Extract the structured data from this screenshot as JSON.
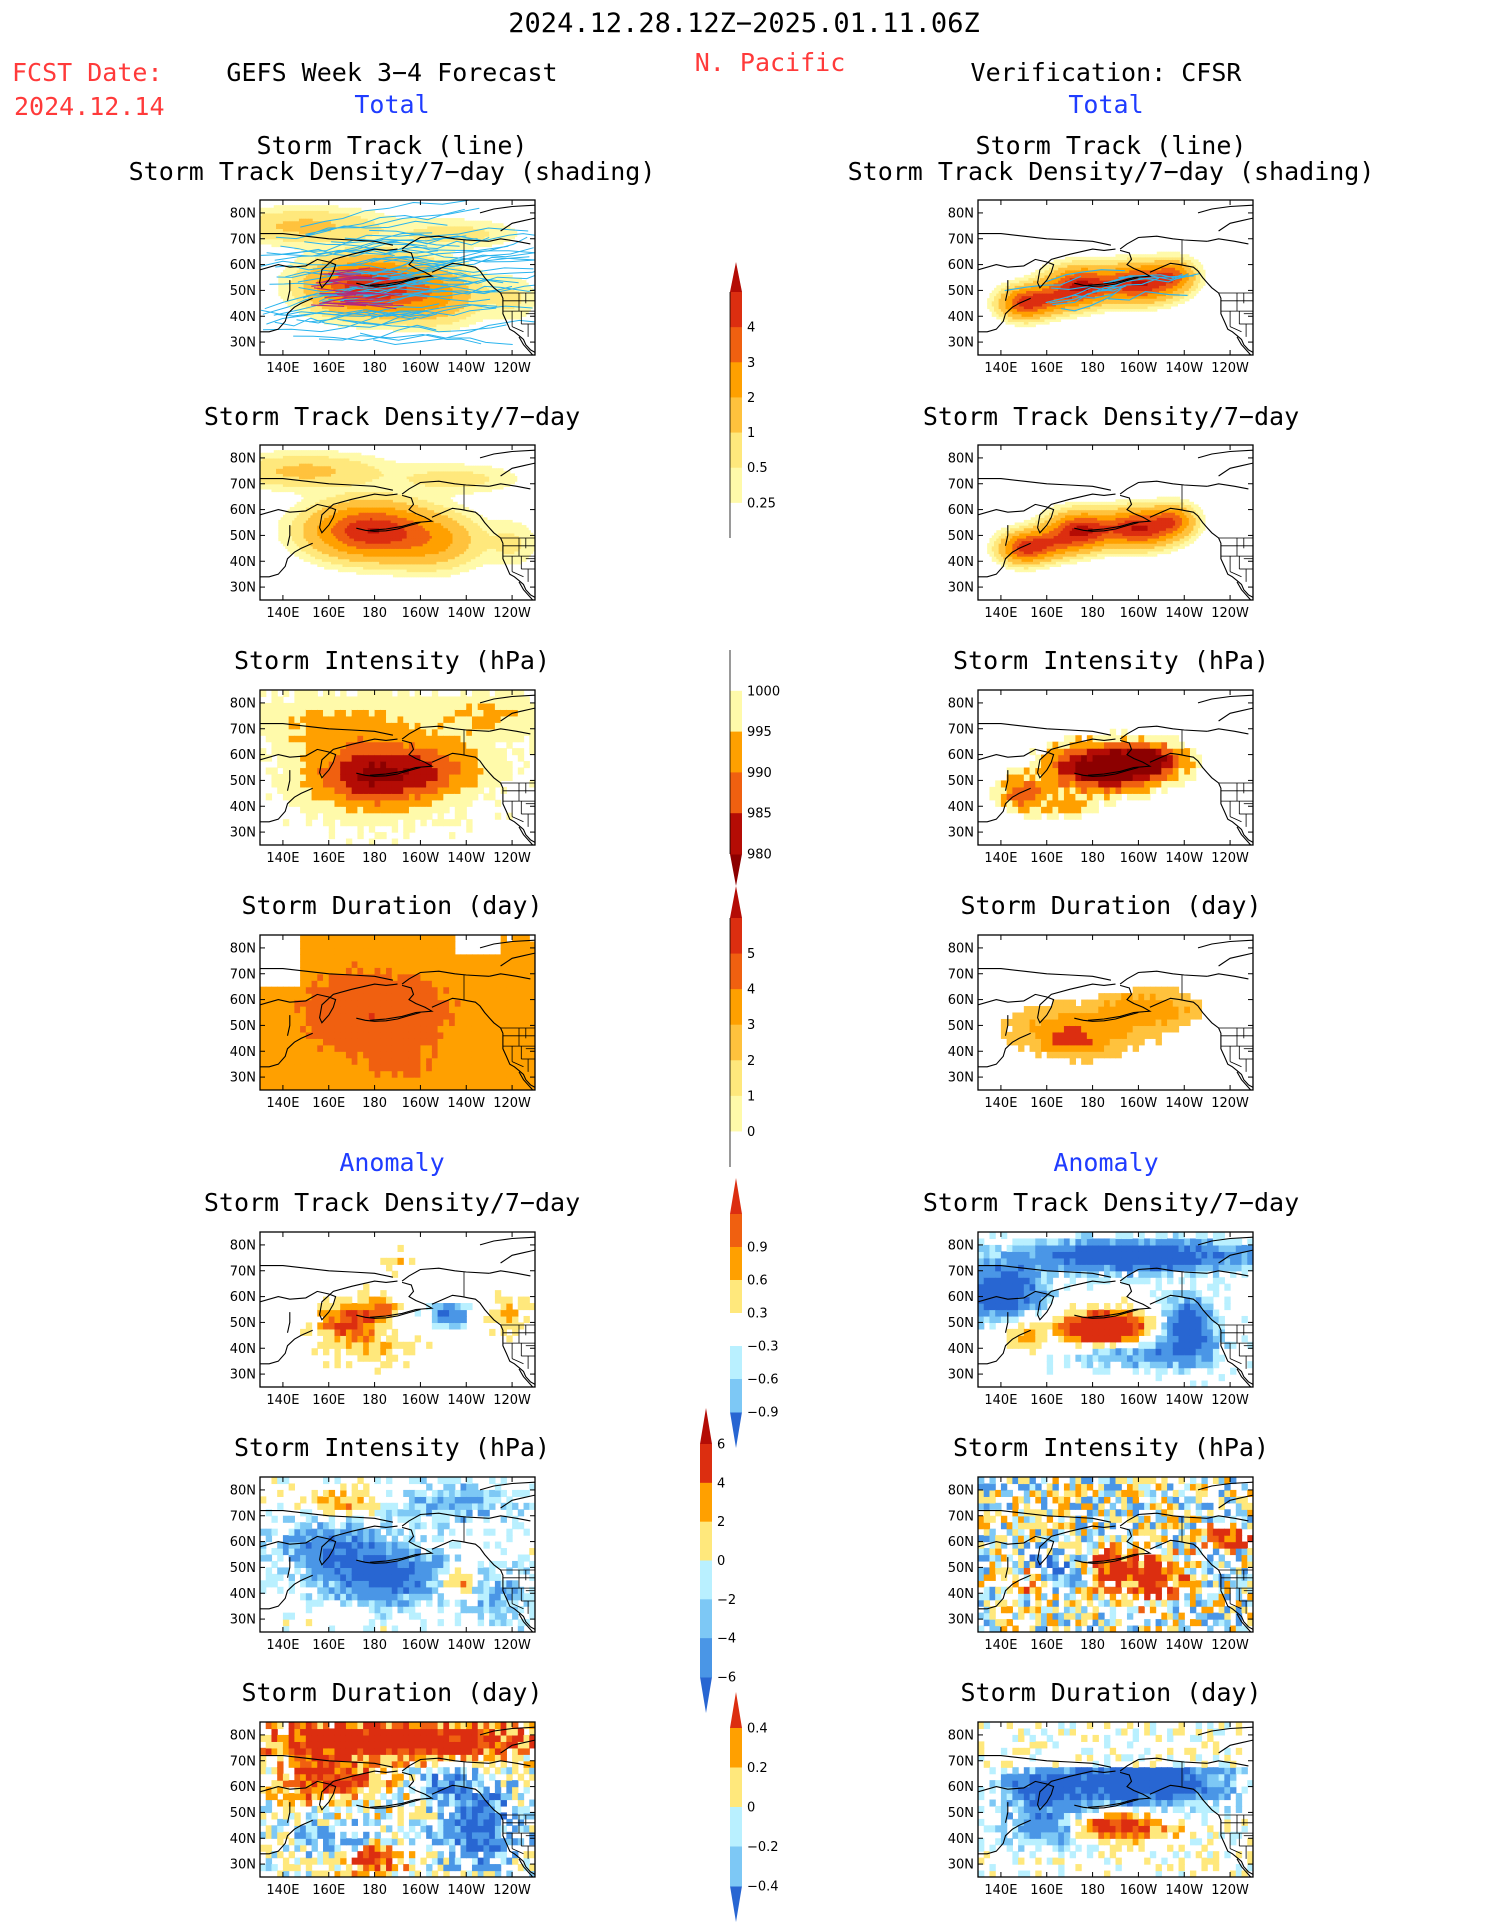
{
  "header": {
    "title": "2024.12.28.12Z−2025.01.11.06Z",
    "region": "N. Pacific",
    "fcst_label": "FCST Date:",
    "fcst_date": "2024.12.14",
    "left_heading": "GEFS Week 3−4 Forecast",
    "right_heading": "Verification: CFSR",
    "total_label": "Total",
    "anomaly_label": "Anomaly"
  },
  "axes": {
    "lat_ticks": [
      "80N",
      "70N",
      "60N",
      "50N",
      "40N",
      "30N"
    ],
    "lon_ticks": [
      "140E",
      "160E",
      "180",
      "160W",
      "140W",
      "120W"
    ]
  },
  "panel_titles": {
    "track_line": "Storm Track (line)",
    "track_density_shading": "Storm Track Density/7−day (shading)",
    "track_density": "Storm Track Density/7−day",
    "intensity": "Storm Intensity (hPa)",
    "duration": "Storm Duration (day)"
  },
  "colors": {
    "c0": "#fffaaa",
    "c1": "#ffe87c",
    "c2": "#ffc23d",
    "c3": "#ffa000",
    "c4": "#f06010",
    "c5": "#dc2e10",
    "c6": "#b40c05",
    "c7": "#8c0000",
    "b1": "#b9f0ff",
    "b2": "#7dc8f5",
    "b3": "#4a96e6",
    "b4": "#2866d2",
    "track_line": "#2ab4ee",
    "track_lobe": "#b4287a"
  },
  "colorbars": {
    "density": [
      "0.25",
      "0.5",
      "1",
      "2",
      "3",
      "4"
    ],
    "intensity": [
      "1000",
      "995",
      "990",
      "985",
      "980"
    ],
    "duration": [
      "0",
      "1",
      "2",
      "3",
      "4",
      "5"
    ],
    "density_anom": [
      "−0.9",
      "−0.6",
      "−0.3",
      "0.3",
      "0.6",
      "0.9"
    ],
    "intensity_anom": [
      "−6",
      "−4",
      "−2",
      "0",
      "2",
      "4",
      "6"
    ],
    "duration_anom": [
      "−0.4",
      "−0.2",
      "0",
      "0.2",
      "0.4"
    ]
  },
  "chart_data": [
    {
      "type": "heatmap",
      "panel": "forecast-total-track",
      "title": "Storm Track (line) / Storm Track Density/7-day (shading)",
      "units": "tracks per 7 day",
      "peak_value": 4,
      "peak_lat": 50,
      "peak_lon": "175E"
    },
    {
      "type": "heatmap",
      "panel": "verification-total-track",
      "title": "Storm Track (line) / Storm Track Density/7-day (shading)",
      "units": "tracks per 7 day",
      "peak_value": 4,
      "peak_lat": 52,
      "peak_lon": "170W"
    },
    {
      "type": "heatmap",
      "panel": "forecast-total-density",
      "title": "Storm Track Density/7-day",
      "levels": [
        0.25,
        0.5,
        1,
        2,
        3,
        4
      ]
    },
    {
      "type": "heatmap",
      "panel": "verification-total-density",
      "title": "Storm Track Density/7-day",
      "levels": [
        0.25,
        0.5,
        1,
        2,
        3,
        4
      ]
    },
    {
      "type": "heatmap",
      "panel": "forecast-total-intensity",
      "title": "Storm Intensity (hPa)",
      "levels": [
        1000,
        995,
        990,
        985,
        980
      ]
    },
    {
      "type": "heatmap",
      "panel": "verification-total-intensity",
      "title": "Storm Intensity (hPa)",
      "levels": [
        1000,
        995,
        990,
        985,
        980
      ]
    },
    {
      "type": "heatmap",
      "panel": "forecast-total-duration",
      "title": "Storm Duration (day)",
      "levels": [
        0,
        1,
        2,
        3,
        4,
        5
      ]
    },
    {
      "type": "heatmap",
      "panel": "verification-total-duration",
      "title": "Storm Duration (day)",
      "levels": [
        0,
        1,
        2,
        3,
        4,
        5
      ]
    },
    {
      "type": "heatmap",
      "panel": "forecast-anom-density",
      "title": "Storm Track Density/7-day",
      "levels": [
        -0.9,
        -0.6,
        -0.3,
        0.3,
        0.6,
        0.9
      ]
    },
    {
      "type": "heatmap",
      "panel": "verification-anom-density",
      "title": "Storm Track Density/7-day",
      "levels": [
        -0.9,
        -0.6,
        -0.3,
        0.3,
        0.6,
        0.9
      ]
    },
    {
      "type": "heatmap",
      "panel": "forecast-anom-intensity",
      "title": "Storm Intensity (hPa)",
      "levels": [
        -6,
        -4,
        -2,
        0,
        2,
        4,
        6
      ]
    },
    {
      "type": "heatmap",
      "panel": "verification-anom-intensity",
      "title": "Storm Intensity (hPa)",
      "levels": [
        -6,
        -4,
        -2,
        0,
        2,
        4,
        6
      ]
    },
    {
      "type": "heatmap",
      "panel": "forecast-anom-duration",
      "title": "Storm Duration (day)",
      "levels": [
        -0.4,
        -0.2,
        0,
        0.2,
        0.4
      ]
    },
    {
      "type": "heatmap",
      "panel": "verification-anom-duration",
      "title": "Storm Duration (day)",
      "levels": [
        -0.4,
        -0.2,
        0,
        0.2,
        0.4
      ]
    }
  ]
}
